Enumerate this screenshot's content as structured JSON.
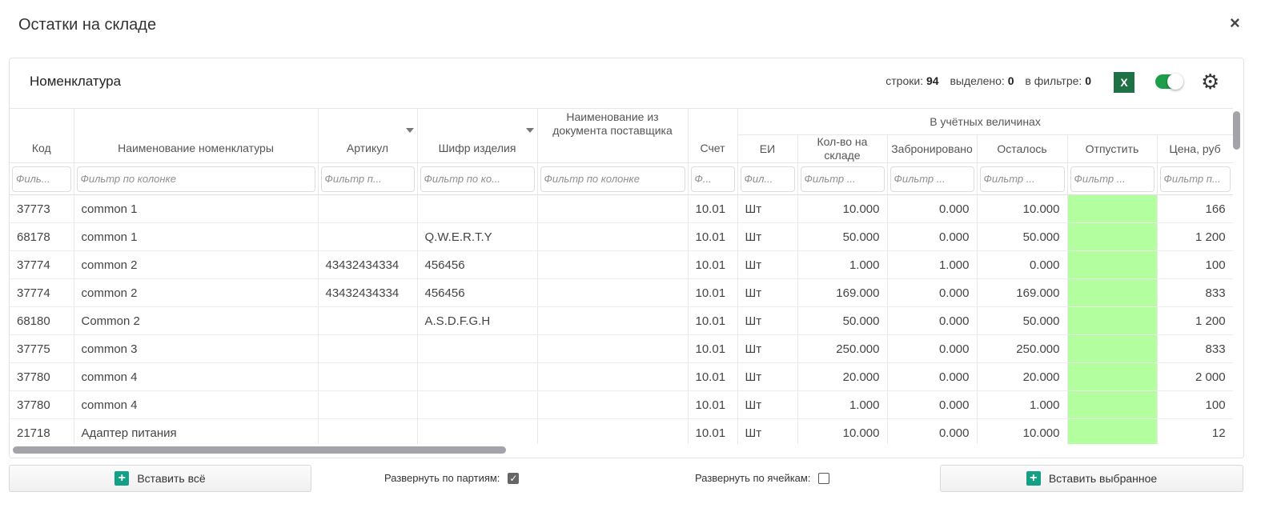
{
  "window": {
    "title": "Остатки на складе",
    "close_icon": "×"
  },
  "panel": {
    "title": "Номенклатура",
    "rows_label": "строки:",
    "rows": "94",
    "selected_label": "выделено:",
    "selected": "0",
    "filter_label": "в фильтре:",
    "filter": "0",
    "excel_label": "X",
    "toggle_on": true
  },
  "columns": {
    "group": "В учётных величинах",
    "code": "Код",
    "name": "Наименование номенклатуры",
    "article": "Артикул",
    "cipher": "Шифр изделия",
    "supplier_name": "Наименование из документа поставщика",
    "account": "Счет",
    "unit": "ЕИ",
    "qty": "Кол-во на складе",
    "reserved": "Забронировано",
    "left": "Осталось",
    "release": "Отпустить",
    "price": "Цена, руб"
  },
  "filters": {
    "code": "Филь...",
    "name": "Фильтр по колонке",
    "article": "Фильтр п...",
    "cipher": "Фильтр по ко...",
    "supplier_name": "Фильтр по колонке",
    "account": "Ф...",
    "unit": "Фил...",
    "qty": "Фильтр ...",
    "reserved": "Фильтр ...",
    "left": "Фильтр ...",
    "release": "Фильтр ...",
    "price": "Фильтр п..."
  },
  "rows": [
    [
      "37773",
      "common 1",
      "",
      "",
      "",
      "10.01",
      "Шт",
      "10.000",
      "0.000",
      "10.000",
      "",
      "166"
    ],
    [
      "68178",
      "common 1",
      "",
      "Q.W.E.R.T.Y",
      "",
      "10.01",
      "Шт",
      "50.000",
      "0.000",
      "50.000",
      "",
      "1 200"
    ],
    [
      "37774",
      "common 2",
      "43432434334",
      "456456",
      "",
      "10.01",
      "Шт",
      "1.000",
      "1.000",
      "0.000",
      "",
      "100"
    ],
    [
      "37774",
      "common 2",
      "43432434334",
      "456456",
      "",
      "10.01",
      "Шт",
      "169.000",
      "0.000",
      "169.000",
      "",
      "833"
    ],
    [
      "68180",
      "Common 2",
      "",
      "A.S.D.F.G.H",
      "",
      "10.01",
      "Шт",
      "50.000",
      "0.000",
      "50.000",
      "",
      "1 200"
    ],
    [
      "37775",
      "common 3",
      "",
      "",
      "",
      "10.01",
      "Шт",
      "250.000",
      "0.000",
      "250.000",
      "",
      "833"
    ],
    [
      "37780",
      "common 4",
      "",
      "",
      "",
      "10.01",
      "Шт",
      "20.000",
      "0.000",
      "20.000",
      "",
      "2 000"
    ],
    [
      "37780",
      "common 4",
      "",
      "",
      "",
      "10.01",
      "Шт",
      "1.000",
      "0.000",
      "1.000",
      "",
      "100"
    ],
    [
      "21718",
      "Адаптер питания",
      "",
      "",
      "",
      "10.01",
      "Шт",
      "10.000",
      "0.000",
      "10.000",
      "",
      "12"
    ]
  ],
  "footer": {
    "insert_all": "Вставить всё",
    "expand_batches": "Развернуть по партиям:",
    "expand_batches_checked": true,
    "expand_cells": "Развернуть по ячейкам:",
    "expand_cells_checked": false,
    "insert_selected": "Вставить выбранное"
  },
  "colors": {
    "release_cell": "#b3ff9f",
    "excel": "#1e7145",
    "toggle": "#1e9e4a",
    "plus": "#14a085"
  }
}
